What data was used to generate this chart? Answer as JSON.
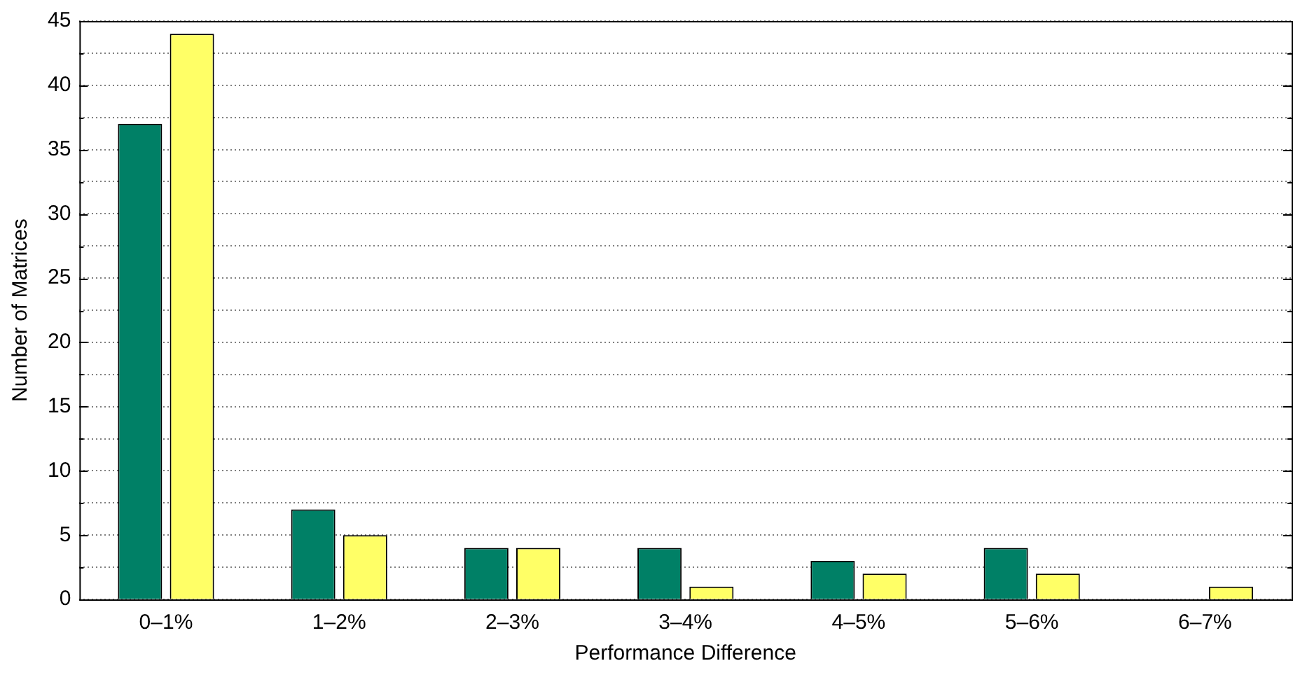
{
  "chart_data": {
    "type": "bar",
    "xlabel": "Performance Difference",
    "ylabel": "Number of Matrices",
    "categories": [
      "0–1%",
      "1–2%",
      "2–3%",
      "3–4%",
      "4–5%",
      "5–6%",
      "6–7%"
    ],
    "series": [
      {
        "color": "#008066",
        "values": [
          37,
          7,
          4,
          4,
          3,
          4,
          0
        ]
      },
      {
        "color": "#ffff66",
        "values": [
          44,
          5,
          4,
          1,
          2,
          2,
          1
        ]
      }
    ],
    "ylim": [
      0,
      45
    ],
    "yticks": [
      0,
      {
        "value": 2.5,
        "label": null
      },
      5,
      {
        "value": 7.5,
        "label": null
      },
      10,
      {
        "value": 12.5,
        "label": null
      },
      15,
      {
        "value": 17.5,
        "label": null
      },
      20,
      {
        "value": 22.5,
        "label": null
      },
      25,
      {
        "value": 27.5,
        "label": null
      },
      30,
      {
        "value": 32.5,
        "label": null
      },
      35,
      {
        "value": 37.5,
        "label": null
      },
      40,
      {
        "value": 42.5,
        "label": null
      },
      45
    ],
    "grid": "y"
  }
}
